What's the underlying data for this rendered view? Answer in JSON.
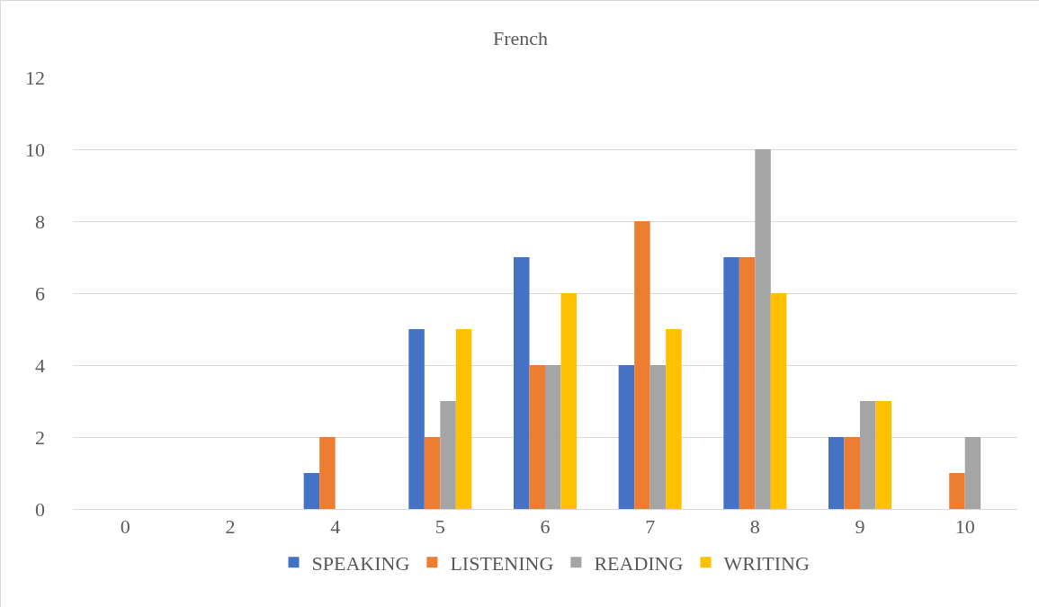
{
  "chart_data": {
    "type": "bar",
    "title": "French",
    "categories": [
      "0",
      "2",
      "4",
      "5",
      "6",
      "7",
      "8",
      "9",
      "10"
    ],
    "series": [
      {
        "name": "SPEAKING",
        "color": "#4472c4",
        "values": [
          0,
          0,
          1,
          5,
          7,
          4,
          7,
          2,
          0
        ]
      },
      {
        "name": "LISTENING",
        "color": "#ed7d31",
        "values": [
          0,
          0,
          2,
          2,
          4,
          8,
          7,
          2,
          1
        ]
      },
      {
        "name": "READING",
        "color": "#a5a5a5",
        "values": [
          0,
          0,
          0,
          3,
          4,
          4,
          10,
          3,
          2
        ]
      },
      {
        "name": "WRITING",
        "color": "#ffc000",
        "values": [
          0,
          0,
          0,
          5,
          6,
          5,
          6,
          3,
          0
        ]
      }
    ],
    "ylim": [
      0,
      12
    ],
    "yticks": [
      0,
      2,
      4,
      6,
      8,
      10,
      12
    ],
    "grid": "y",
    "legend": "bottom"
  }
}
